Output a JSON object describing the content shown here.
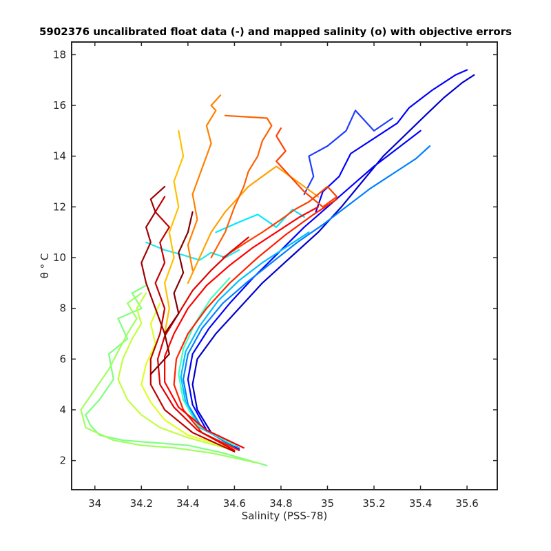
{
  "chart_data": {
    "type": "line",
    "title": "5902376 uncalibrated float data (-) and mapped salinity (o) with objective errors",
    "xlabel": "Salinity (PSS-78)",
    "ylabel": "θ ° C",
    "xlim": [
      33.9,
      35.73
    ],
    "ylim": [
      0.85,
      18.5
    ],
    "xticks": [
      34,
      34.2,
      34.4,
      34.6,
      34.8,
      35,
      35.2,
      35.4,
      35.6
    ],
    "xtick_labels": [
      "34",
      "34.2",
      "34.4",
      "34.6",
      "34.8",
      "35",
      "35.2",
      "35.4",
      "35.6"
    ],
    "yticks": [
      2,
      4,
      6,
      8,
      10,
      12,
      14,
      16,
      18
    ],
    "ytick_labels": [
      "2",
      "4",
      "6",
      "8",
      "10",
      "12",
      "14",
      "16",
      "18"
    ],
    "grid": false,
    "colormap": "jet",
    "series": [
      {
        "color": "#0000cc",
        "x": [
          34.62,
          34.5,
          34.44,
          34.42,
          34.44,
          34.52,
          34.62,
          34.72,
          34.84,
          34.96,
          35.06,
          35.15,
          35.24,
          35.33,
          35.42,
          35.5,
          35.58,
          35.63
        ],
        "y": [
          2.4,
          3.1,
          4.0,
          5.0,
          6.0,
          7.0,
          8.0,
          9.0,
          10.0,
          11.0,
          12.0,
          13.0,
          14.0,
          14.8,
          15.6,
          16.3,
          16.9,
          17.2
        ]
      },
      {
        "color": "#0000ff",
        "x": [
          34.62,
          34.48,
          34.42,
          34.4,
          34.42,
          34.49,
          34.58,
          34.68,
          34.79,
          34.9,
          35.0,
          35.1,
          35.2,
          35.3,
          35.4
        ],
        "y": [
          2.45,
          3.2,
          4.2,
          5.2,
          6.2,
          7.2,
          8.2,
          9.2,
          10.2,
          11.2,
          12.0,
          12.8,
          13.6,
          14.3,
          15.0
        ]
      },
      {
        "color": "#0000ff",
        "x": [
          34.95,
          34.98,
          35.05,
          35.1,
          35.2,
          35.3,
          35.35,
          35.45,
          35.55,
          35.6
        ],
        "y": [
          11.8,
          12.6,
          13.2,
          14.1,
          14.7,
          15.3,
          15.9,
          16.6,
          17.2,
          17.4
        ]
      },
      {
        "color": "#1e3cff",
        "x": [
          34.9,
          34.94,
          34.92,
          35.0,
          35.08,
          35.12,
          35.2,
          35.28
        ],
        "y": [
          12.5,
          13.2,
          14.0,
          14.4,
          15.0,
          15.8,
          15.0,
          15.5
        ]
      },
      {
        "color": "#0080ff",
        "x": [
          34.6,
          34.46,
          34.4,
          34.38,
          34.4,
          34.46,
          34.55,
          34.65,
          34.76,
          34.87,
          34.98,
          35.08,
          35.18,
          35.28,
          35.38,
          35.44
        ],
        "y": [
          2.5,
          3.3,
          4.2,
          5.2,
          6.2,
          7.2,
          8.2,
          9.0,
          9.8,
          10.6,
          11.3,
          12.0,
          12.7,
          13.3,
          13.9,
          14.4
        ]
      },
      {
        "color": "#00c0ff",
        "x": [
          34.62,
          34.45,
          34.39,
          34.37,
          34.39,
          34.45,
          34.53,
          34.62,
          34.72,
          34.82,
          34.92
        ],
        "y": [
          2.5,
          3.3,
          4.3,
          5.3,
          6.3,
          7.3,
          8.3,
          9.1,
          9.8,
          10.4,
          11.0
        ]
      },
      {
        "color": "#00e8ff",
        "x": [
          34.52,
          34.62,
          34.7,
          34.78,
          34.85,
          34.9
        ],
        "y": [
          11.0,
          11.4,
          11.7,
          11.2,
          11.9,
          11.6
        ]
      },
      {
        "color": "#1ee8f0",
        "x": [
          34.22,
          34.3,
          34.38,
          34.45,
          34.5,
          34.56,
          34.62
        ],
        "y": [
          10.6,
          10.3,
          10.1,
          9.9,
          10.2,
          10.0,
          10.3
        ]
      },
      {
        "color": "#40ffc0",
        "x": [
          34.6,
          34.44,
          34.38,
          34.36,
          34.38,
          34.43,
          34.5,
          34.58
        ],
        "y": [
          2.6,
          3.4,
          4.4,
          5.4,
          6.4,
          7.4,
          8.4,
          9.2
        ]
      },
      {
        "color": "#7fff80",
        "x": [
          34.74,
          34.55,
          34.4,
          34.26,
          34.12,
          34.02,
          33.98,
          33.96,
          34.02,
          34.08,
          34.06,
          34.14,
          34.1,
          34.2,
          34.16,
          34.22
        ],
        "y": [
          1.8,
          2.3,
          2.6,
          2.7,
          2.8,
          3.0,
          3.4,
          3.8,
          4.4,
          5.2,
          6.2,
          6.8,
          7.6,
          8.0,
          8.6,
          8.9
        ]
      },
      {
        "color": "#9fff60",
        "x": [
          34.7,
          34.5,
          34.34,
          34.2,
          34.08,
          33.96,
          33.94,
          34.0,
          34.06,
          34.1,
          34.14,
          34.18,
          34.14,
          34.2
        ],
        "y": [
          1.9,
          2.3,
          2.5,
          2.6,
          2.8,
          3.3,
          4.0,
          4.8,
          5.6,
          6.3,
          7.0,
          7.6,
          8.2,
          8.6
        ]
      },
      {
        "color": "#c0ff40",
        "x": [
          34.6,
          34.4,
          34.28,
          34.2,
          34.14,
          34.1,
          34.12,
          34.16,
          34.2,
          34.18,
          34.22
        ],
        "y": [
          2.4,
          2.9,
          3.3,
          3.8,
          4.4,
          5.2,
          6.0,
          6.8,
          7.4,
          8.0,
          8.6
        ]
      },
      {
        "color": "#e0ff20",
        "x": [
          34.58,
          34.4,
          34.3,
          34.24,
          34.2,
          34.22,
          34.26,
          34.24,
          34.28
        ],
        "y": [
          2.5,
          3.0,
          3.6,
          4.3,
          5.0,
          5.8,
          6.6,
          7.4,
          8.2
        ]
      },
      {
        "color": "#ffc000",
        "x": [
          34.3,
          34.32,
          34.3,
          34.34,
          34.32,
          34.36,
          34.34,
          34.38,
          34.36
        ],
        "y": [
          7.0,
          8.0,
          9.0,
          10.0,
          11.0,
          12.0,
          13.0,
          14.0,
          15.0
        ]
      },
      {
        "color": "#ffa000",
        "x": [
          34.4,
          34.46,
          34.5,
          34.56,
          34.62,
          34.66,
          34.72,
          34.78,
          34.84,
          34.9,
          34.96
        ],
        "y": [
          9.0,
          10.2,
          11.0,
          11.8,
          12.4,
          12.8,
          13.2,
          13.6,
          13.2,
          12.8,
          12.4
        ]
      },
      {
        "color": "#ff8000",
        "x": [
          34.42,
          34.4,
          34.44,
          34.42,
          34.46,
          34.5,
          34.48,
          34.52,
          34.5,
          34.54
        ],
        "y": [
          9.5,
          10.5,
          11.5,
          12.5,
          13.5,
          14.5,
          15.2,
          15.8,
          16.0,
          16.4
        ]
      },
      {
        "color": "#ff6000",
        "x": [
          34.5,
          34.56,
          34.6,
          34.64,
          34.66,
          34.7,
          34.72,
          34.76,
          34.74,
          34.56
        ],
        "y": [
          10.0,
          11.0,
          12.0,
          12.8,
          13.4,
          14.0,
          14.6,
          15.2,
          15.5,
          15.6
        ]
      },
      {
        "color": "#ff4000",
        "x": [
          34.55,
          34.65,
          34.72,
          34.8,
          34.86,
          34.92,
          34.96,
          35.0,
          35.04,
          34.98,
          34.9,
          34.84,
          34.78,
          34.82,
          34.78,
          34.8
        ],
        "y": [
          10.0,
          10.6,
          11.0,
          11.5,
          11.9,
          12.2,
          12.5,
          12.8,
          12.4,
          12.0,
          12.6,
          13.2,
          13.8,
          14.2,
          14.8,
          15.1
        ]
      },
      {
        "color": "#ff2000",
        "x": [
          34.62,
          34.46,
          34.38,
          34.34,
          34.35,
          34.4,
          34.48,
          34.58,
          34.7,
          34.82,
          34.94,
          35.04
        ],
        "y": [
          2.4,
          3.1,
          4.0,
          5.0,
          6.0,
          7.0,
          8.0,
          9.0,
          10.0,
          10.9,
          11.7,
          12.3
        ]
      },
      {
        "color": "#ff0000",
        "x": [
          34.64,
          34.48,
          34.36,
          34.3,
          34.3,
          34.34,
          34.4,
          34.48,
          34.58,
          34.68,
          34.78,
          34.88,
          34.96
        ],
        "y": [
          2.5,
          3.2,
          4.1,
          5.1,
          6.1,
          7.0,
          8.0,
          8.9,
          9.7,
          10.4,
          11.0,
          11.6,
          12.0
        ]
      },
      {
        "color": "#e00000",
        "x": [
          34.6,
          34.44,
          34.34,
          34.28,
          34.27,
          34.3,
          34.36,
          34.42,
          34.5,
          34.58,
          34.66
        ],
        "y": [
          2.4,
          3.2,
          4.1,
          5.0,
          6.0,
          6.9,
          7.8,
          8.7,
          9.5,
          10.2,
          10.8
        ]
      },
      {
        "color": "#c00000",
        "x": [
          34.6,
          34.42,
          34.3,
          34.24,
          34.24,
          34.28,
          34.3,
          34.26,
          34.3,
          34.28,
          34.32,
          34.26,
          34.3
        ],
        "y": [
          2.35,
          3.1,
          4.0,
          5.0,
          6.0,
          7.0,
          8.0,
          9.0,
          9.8,
          10.6,
          11.2,
          11.8,
          12.4
        ]
      },
      {
        "color": "#a00000",
        "x": [
          34.3,
          34.26,
          34.22,
          34.2,
          34.24,
          34.22,
          34.26,
          34.24,
          34.3
        ],
        "y": [
          7.0,
          8.0,
          9.0,
          9.8,
          10.6,
          11.2,
          11.8,
          12.3,
          12.8
        ]
      },
      {
        "color": "#800000",
        "x": [
          34.24,
          34.32,
          34.3,
          34.36,
          34.34,
          34.38,
          34.36,
          34.4,
          34.42
        ],
        "y": [
          5.4,
          6.2,
          7.0,
          7.8,
          8.6,
          9.4,
          10.2,
          11.0,
          11.8
        ]
      }
    ]
  }
}
